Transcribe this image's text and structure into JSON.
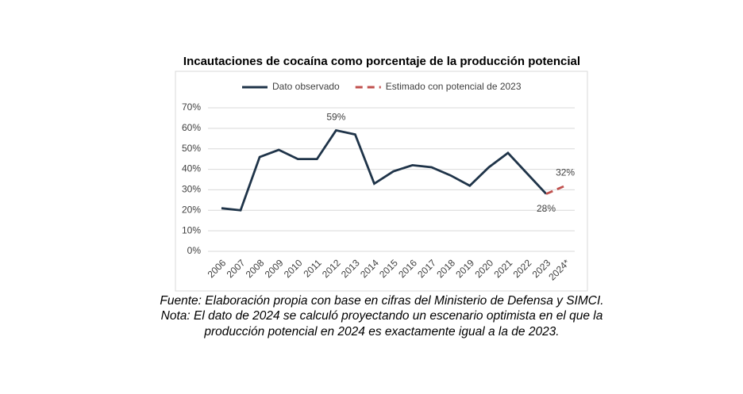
{
  "chart_data": {
    "type": "line",
    "title": "Incautaciones de cocaína como porcentaje de la producción potencial",
    "categories": [
      "2006",
      "2007",
      "2008",
      "2009",
      "2010",
      "2011",
      "2012",
      "2013",
      "2014",
      "2015",
      "2016",
      "2017",
      "2018",
      "2019",
      "2020",
      "2021",
      "2022",
      "2023",
      "2024*"
    ],
    "series": [
      {
        "name": "Dato observado",
        "color": "#1f3449",
        "dash": false,
        "values": [
          21,
          20,
          46,
          49.5,
          45,
          45,
          59,
          57,
          33,
          39,
          42,
          41,
          37,
          32,
          41,
          48,
          38,
          28,
          null
        ],
        "value_labels": [
          null,
          null,
          null,
          null,
          null,
          null,
          "59%",
          null,
          null,
          null,
          null,
          null,
          null,
          null,
          null,
          null,
          null,
          "28%",
          null
        ]
      },
      {
        "name": "Estimado con potencial de 2023",
        "color": "#c0504d",
        "dash": true,
        "values": [
          null,
          null,
          null,
          null,
          null,
          null,
          null,
          null,
          null,
          null,
          null,
          null,
          null,
          null,
          null,
          null,
          null,
          28,
          32
        ],
        "value_labels": [
          null,
          null,
          null,
          null,
          null,
          null,
          null,
          null,
          null,
          null,
          null,
          null,
          null,
          null,
          null,
          null,
          null,
          null,
          "32%"
        ]
      }
    ],
    "ylim": [
      0,
      70
    ],
    "yticks": [
      {
        "value": 0,
        "label": "0%"
      },
      {
        "value": 10,
        "label": "10%"
      },
      {
        "value": 20,
        "label": "20%"
      },
      {
        "value": 30,
        "label": "30%"
      },
      {
        "value": 40,
        "label": "40%"
      },
      {
        "value": 50,
        "label": "50%"
      },
      {
        "value": 60,
        "label": "60%"
      },
      {
        "value": 70,
        "label": "70%"
      }
    ],
    "grid": true,
    "legend": "top"
  },
  "caption": [
    "Fuente: Elaboración propia con base en cifras del Ministerio de Defensa y SIMCI.",
    "Nota: El dato de 2024 se calculó proyectando un escenario optimista en el que la",
    "producción potencial en 2024 es exactamente igual a la de 2023."
  ]
}
